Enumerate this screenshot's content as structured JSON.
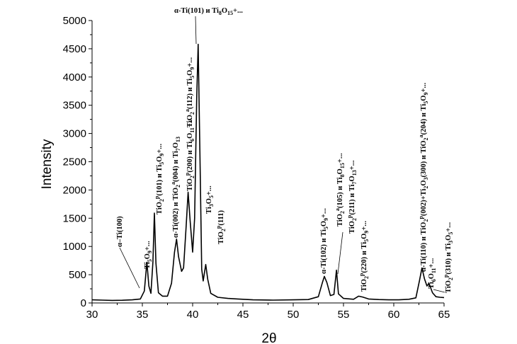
{
  "chart_data": {
    "type": "line",
    "title": "",
    "xlabel": "2θ",
    "ylabel": "Intensity",
    "xlim": [
      30,
      65
    ],
    "ylim": [
      0,
      5000
    ],
    "x_ticks": [
      "30",
      "35",
      "40",
      "45",
      "50",
      "55",
      "60",
      "65"
    ],
    "y_ticks": [
      "0",
      "500",
      "1000",
      "1500",
      "2000",
      "2500",
      "3000",
      "3500",
      "4000",
      "4500",
      "5000"
    ],
    "grid": false,
    "legend": "none",
    "line_color": "#000000",
    "series": [
      {
        "points": [
          [
            30,
            55
          ],
          [
            31,
            50
          ],
          [
            32,
            45
          ],
          [
            33,
            48
          ],
          [
            34,
            55
          ],
          [
            34.8,
            70
          ],
          [
            35.2,
            210
          ],
          [
            35.45,
            720
          ],
          [
            35.65,
            300
          ],
          [
            35.85,
            170
          ],
          [
            36.05,
            720
          ],
          [
            36.2,
            1590
          ],
          [
            36.35,
            700
          ],
          [
            36.6,
            180
          ],
          [
            37,
            120
          ],
          [
            37.5,
            120
          ],
          [
            37.9,
            350
          ],
          [
            38.2,
            900
          ],
          [
            38.4,
            1130
          ],
          [
            38.6,
            820
          ],
          [
            38.9,
            560
          ],
          [
            39.1,
            620
          ],
          [
            39.35,
            1350
          ],
          [
            39.55,
            1960
          ],
          [
            39.75,
            1450
          ],
          [
            40.0,
            900
          ],
          [
            40.2,
            1500
          ],
          [
            40.4,
            3600
          ],
          [
            40.55,
            4580
          ],
          [
            40.75,
            2400
          ],
          [
            40.9,
            600
          ],
          [
            41.05,
            390
          ],
          [
            41.3,
            680
          ],
          [
            41.5,
            420
          ],
          [
            41.8,
            170
          ],
          [
            42.5,
            100
          ],
          [
            43.5,
            80
          ],
          [
            44.5,
            70
          ],
          [
            46,
            55
          ],
          [
            48,
            50
          ],
          [
            50,
            55
          ],
          [
            51.5,
            60
          ],
          [
            52.5,
            110
          ],
          [
            52.9,
            360
          ],
          [
            53.1,
            470
          ],
          [
            53.35,
            360
          ],
          [
            53.7,
            130
          ],
          [
            54.05,
            150
          ],
          [
            54.3,
            580
          ],
          [
            54.5,
            160
          ],
          [
            55,
            80
          ],
          [
            56,
            65
          ],
          [
            56.5,
            120
          ],
          [
            56.9,
            105
          ],
          [
            57.5,
            70
          ],
          [
            58.5,
            60
          ],
          [
            59.5,
            55
          ],
          [
            60.5,
            55
          ],
          [
            61.5,
            65
          ],
          [
            62.2,
            90
          ],
          [
            62.55,
            390
          ],
          [
            62.8,
            620
          ],
          [
            63.05,
            430
          ],
          [
            63.3,
            300
          ],
          [
            63.5,
            350
          ],
          [
            63.85,
            180
          ],
          [
            64.2,
            110
          ],
          [
            64.6,
            100
          ],
          [
            65,
            95
          ]
        ]
      }
    ],
    "annotations": [
      {
        "id": "a1",
        "plain": "α–Ti(100)",
        "parts": [
          [
            "α–Ti(100)",
            ""
          ]
        ]
      },
      {
        "id": "a2",
        "plain": "Ti5O9+...",
        "parts": [
          [
            "Ti",
            ""
          ],
          [
            "5",
            "sub"
          ],
          [
            "O",
            ""
          ],
          [
            "9",
            "sub"
          ],
          [
            "+...",
            ""
          ]
        ]
      },
      {
        "id": "a3",
        "plain": "TiO2p(101) и Ti5O9+...",
        "parts": [
          [
            "TiO",
            ""
          ],
          [
            "2",
            "sub"
          ],
          [
            "p",
            "sup"
          ],
          [
            "(101) и Ti",
            ""
          ],
          [
            "5",
            "sub"
          ],
          [
            "O",
            ""
          ],
          [
            "9",
            "sub"
          ],
          [
            "+...",
            ""
          ]
        ]
      },
      {
        "id": "a4",
        "plain": "α-Ti(002) и TiO2a(004) и Ti7O13",
        "parts": [
          [
            "α-Ti(002) и TiO",
            ""
          ],
          [
            "2",
            "sub"
          ],
          [
            "a",
            "sup"
          ],
          [
            "(004) и Ti",
            ""
          ],
          [
            "7",
            "sub"
          ],
          [
            "O",
            ""
          ],
          [
            "13",
            "sub"
          ]
        ]
      },
      {
        "id": "a5",
        "plain": "TiO2p(200) и Ti6O11+...",
        "parts": [
          [
            "TiO",
            ""
          ],
          [
            "2",
            "sub"
          ],
          [
            "p",
            "sup"
          ],
          [
            "(200) и Ti",
            ""
          ],
          [
            "6",
            "sub"
          ],
          [
            "O",
            ""
          ],
          [
            "11",
            "sub"
          ],
          [
            "+...",
            ""
          ]
        ]
      },
      {
        "id": "a6",
        "plain": "TiO2a(112) и Ti5O9+...",
        "parts": [
          [
            "TiO",
            ""
          ],
          [
            "2",
            "sub"
          ],
          [
            "a",
            "sup"
          ],
          [
            "(112) и Ti",
            ""
          ],
          [
            "5",
            "sub"
          ],
          [
            "O",
            ""
          ],
          [
            "9",
            "sub"
          ],
          [
            "+...",
            ""
          ]
        ]
      },
      {
        "id": "a7",
        "plain": "α-Ti(101) и Ti8O15+...",
        "parts": [
          [
            "α-Ti(101) и Ti",
            ""
          ],
          [
            "8",
            "sub"
          ],
          [
            "O",
            ""
          ],
          [
            "15",
            "sub"
          ],
          [
            "+...",
            ""
          ]
        ]
      },
      {
        "id": "a8",
        "plain": "Ti3O5+...",
        "parts": [
          [
            "Ti",
            ""
          ],
          [
            "3",
            "sub"
          ],
          [
            "O",
            ""
          ],
          [
            "5",
            "sub"
          ],
          [
            "+...",
            ""
          ]
        ]
      },
      {
        "id": "a9",
        "plain": "TiO2p(111)",
        "parts": [
          [
            "TiO",
            ""
          ],
          [
            "2",
            "sub"
          ],
          [
            "p",
            "sup"
          ],
          [
            "(111)",
            ""
          ]
        ]
      },
      {
        "id": "a10",
        "plain": "α-Ti(102) и Ti5O9+...",
        "parts": [
          [
            "α-Ti(102) и Ti",
            ""
          ],
          [
            "5",
            "sub"
          ],
          [
            "O",
            ""
          ],
          [
            "9",
            "sub"
          ],
          [
            "+...",
            ""
          ]
        ]
      },
      {
        "id": "a11",
        "plain": "TiO2a(105) и Ti8O15+...",
        "parts": [
          [
            "TiO",
            ""
          ],
          [
            "2",
            "sub"
          ],
          [
            "a",
            "sup"
          ],
          [
            "(105) и Ti",
            ""
          ],
          [
            "8",
            "sub"
          ],
          [
            "O",
            ""
          ],
          [
            "15",
            "sub"
          ],
          [
            "+...",
            ""
          ]
        ]
      },
      {
        "id": "a12",
        "plain": "TiO2p(211) и Ti7O13+...",
        "parts": [
          [
            "TiO",
            ""
          ],
          [
            "2",
            "sub"
          ],
          [
            "p",
            "sup"
          ],
          [
            "(211) и Ti",
            ""
          ],
          [
            "7",
            "sub"
          ],
          [
            "O",
            ""
          ],
          [
            "13",
            "sub"
          ],
          [
            "+...",
            ""
          ]
        ]
      },
      {
        "id": "a13",
        "plain": "TiO2p(220) и Ti5O9+...",
        "parts": [
          [
            "TiO",
            ""
          ],
          [
            "2",
            "sub"
          ],
          [
            "p",
            "sup"
          ],
          [
            "(220) и Ti",
            ""
          ],
          [
            "5",
            "sub"
          ],
          [
            "O",
            ""
          ],
          [
            "9",
            "sub"
          ],
          [
            "+...",
            ""
          ]
        ]
      },
      {
        "id": "a14",
        "plain": "α-Ti(110) и TiO2p(002)+Ti2O3(300) и TiO2a(204) и Ti5O9+...",
        "parts": [
          [
            "α-Ti(110) и TiO",
            ""
          ],
          [
            "2",
            "sub"
          ],
          [
            "p",
            "sup"
          ],
          [
            "(002)+Ti",
            ""
          ],
          [
            "2",
            "sub"
          ],
          [
            "O",
            ""
          ],
          [
            "3",
            "sub"
          ],
          [
            "(300) и TiO",
            ""
          ],
          [
            "2",
            "sub"
          ],
          [
            "a",
            "sup"
          ],
          [
            "(204) и Ti",
            ""
          ],
          [
            "5",
            "sub"
          ],
          [
            "O",
            ""
          ],
          [
            "9",
            "sub"
          ],
          [
            "+...",
            ""
          ]
        ]
      },
      {
        "id": "a15",
        "plain": "Ti6O11+...",
        "parts": [
          [
            "Ti",
            ""
          ],
          [
            "6",
            "sub"
          ],
          [
            "O",
            ""
          ],
          [
            "11",
            "sub"
          ],
          [
            "+...",
            ""
          ]
        ]
      },
      {
        "id": "a16",
        "plain": "TiO2p(310) и Ti3O5+...",
        "parts": [
          [
            "TiO",
            ""
          ],
          [
            "2",
            "sub"
          ],
          [
            "p",
            "sup"
          ],
          [
            "(310) и Ti",
            ""
          ],
          [
            "3",
            "sub"
          ],
          [
            "O",
            ""
          ],
          [
            "5",
            "sub"
          ],
          [
            "+...",
            ""
          ]
        ]
      }
    ]
  }
}
